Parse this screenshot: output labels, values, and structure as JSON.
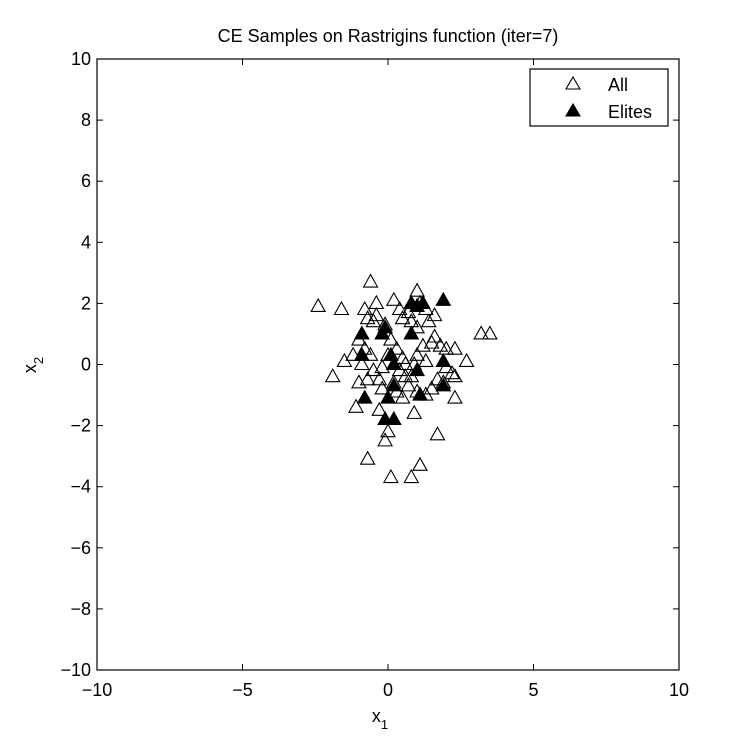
{
  "chart_data": {
    "type": "scatter",
    "title": "CE Samples on Rastrigins function (iter=7)",
    "xlabel": "x",
    "xlabel_sub": "1",
    "ylabel": "x",
    "ylabel_sub": "2",
    "xlim": [
      -10,
      10
    ],
    "ylim": [
      -10,
      10
    ],
    "xticks": [
      -10,
      -5,
      0,
      5,
      10
    ],
    "yticks": [
      -10,
      -8,
      -6,
      -4,
      -2,
      0,
      2,
      4,
      6,
      8,
      10
    ],
    "grid": false,
    "legend_position": "top-right",
    "series": [
      {
        "name": "All",
        "marker": "triangle-open",
        "color": "#000000",
        "points": [
          [
            -2.4,
            1.9
          ],
          [
            -1.6,
            1.8
          ],
          [
            -0.6,
            2.7
          ],
          [
            -0.4,
            2.0
          ],
          [
            -0.7,
            1.5
          ],
          [
            -0.5,
            1.4
          ],
          [
            -0.8,
            1.8
          ],
          [
            0.2,
            2.1
          ],
          [
            0.5,
            1.5
          ],
          [
            0.7,
            1.7
          ],
          [
            1.0,
            2.4
          ],
          [
            1.1,
            2.0
          ],
          [
            1.3,
            1.8
          ],
          [
            1.4,
            1.4
          ],
          [
            1.6,
            1.6
          ],
          [
            -1.0,
            0.8
          ],
          [
            -0.8,
            0.5
          ],
          [
            -0.6,
            0.3
          ],
          [
            -0.9,
            0.0
          ],
          [
            -1.2,
            0.3
          ],
          [
            -1.5,
            0.1
          ],
          [
            -1.9,
            -0.4
          ],
          [
            -1.0,
            -0.6
          ],
          [
            -0.7,
            -0.5
          ],
          [
            -0.5,
            -0.2
          ],
          [
            -0.3,
            -0.5
          ],
          [
            -0.2,
            -0.1
          ],
          [
            0.0,
            0.3
          ],
          [
            0.1,
            0.8
          ],
          [
            0.3,
            0.5
          ],
          [
            0.5,
            0.2
          ],
          [
            0.6,
            0.0
          ],
          [
            0.4,
            -0.2
          ],
          [
            0.2,
            -0.6
          ],
          [
            0.3,
            -0.9
          ],
          [
            0.5,
            -1.1
          ],
          [
            0.7,
            -0.7
          ],
          [
            0.8,
            -0.4
          ],
          [
            1.0,
            0.3
          ],
          [
            1.2,
            0.6
          ],
          [
            1.3,
            0.1
          ],
          [
            1.5,
            0.7
          ],
          [
            1.6,
            0.9
          ],
          [
            1.8,
            0.6
          ],
          [
            2.0,
            0.5
          ],
          [
            2.3,
            0.5
          ],
          [
            2.2,
            -0.3
          ],
          [
            2.0,
            -0.1
          ],
          [
            1.7,
            -0.5
          ],
          [
            1.5,
            -0.8
          ],
          [
            1.3,
            -1.0
          ],
          [
            1.0,
            -0.9
          ],
          [
            2.7,
            0.1
          ],
          [
            2.3,
            -1.1
          ],
          [
            3.2,
            1.0
          ],
          [
            3.5,
            1.0
          ],
          [
            1.7,
            -2.3
          ],
          [
            -1.1,
            -1.4
          ],
          [
            -0.3,
            -1.5
          ],
          [
            0.0,
            -2.2
          ],
          [
            -0.1,
            -2.5
          ],
          [
            -0.7,
            -3.1
          ],
          [
            0.1,
            -3.7
          ],
          [
            0.8,
            -3.7
          ],
          [
            1.1,
            -3.3
          ],
          [
            0.9,
            -1.6
          ],
          [
            -0.2,
            -0.8
          ],
          [
            0.2,
            0.0
          ],
          [
            -0.4,
            1.6
          ],
          [
            0.8,
            1.4
          ],
          [
            1.0,
            1.2
          ],
          [
            -0.1,
            1.3
          ],
          [
            0.9,
            0.0
          ],
          [
            0.6,
            -0.4
          ],
          [
            1.9,
            -0.6
          ],
          [
            2.3,
            -0.4
          ],
          [
            0.4,
            1.8
          ]
        ]
      },
      {
        "name": "Elites",
        "marker": "triangle-filled",
        "color": "#000000",
        "points": [
          [
            -0.9,
            1.0
          ],
          [
            -0.9,
            0.3
          ],
          [
            -0.2,
            1.0
          ],
          [
            -0.1,
            1.2
          ],
          [
            0.1,
            0.3
          ],
          [
            0.2,
            0.0
          ],
          [
            0.8,
            2.0
          ],
          [
            1.0,
            1.9
          ],
          [
            1.2,
            2.0
          ],
          [
            1.9,
            2.1
          ],
          [
            0.8,
            1.0
          ],
          [
            1.0,
            -0.2
          ],
          [
            1.9,
            0.1
          ],
          [
            1.9,
            -0.7
          ],
          [
            1.1,
            -1.0
          ],
          [
            0.2,
            -0.7
          ],
          [
            0.0,
            -1.1
          ],
          [
            -0.1,
            -1.8
          ],
          [
            0.2,
            -1.8
          ],
          [
            -0.8,
            -1.1
          ]
        ]
      }
    ]
  }
}
